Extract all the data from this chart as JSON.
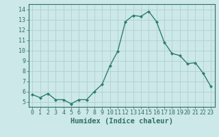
{
  "x": [
    0,
    1,
    2,
    3,
    4,
    5,
    6,
    7,
    8,
    9,
    10,
    11,
    12,
    13,
    14,
    15,
    16,
    17,
    18,
    19,
    20,
    21,
    22,
    23
  ],
  "y": [
    5.7,
    5.4,
    5.8,
    5.2,
    5.2,
    4.8,
    5.2,
    5.2,
    6.0,
    6.7,
    8.5,
    9.9,
    12.8,
    13.4,
    13.3,
    13.8,
    12.8,
    10.8,
    9.7,
    9.5,
    8.7,
    8.8,
    7.8,
    6.5
  ],
  "line_color": "#2e7d6e",
  "marker": "D",
  "marker_size": 2.0,
  "bg_color": "#cce8e8",
  "grid_color": "#b0d0d0",
  "xlabel": "Humidex (Indice chaleur)",
  "xlim": [
    -0.5,
    23.5
  ],
  "ylim": [
    4.5,
    14.5
  ],
  "yticks": [
    5,
    6,
    7,
    8,
    9,
    10,
    11,
    12,
    13,
    14
  ],
  "xticks": [
    0,
    1,
    2,
    3,
    4,
    5,
    6,
    7,
    8,
    9,
    10,
    11,
    12,
    13,
    14,
    15,
    16,
    17,
    18,
    19,
    20,
    21,
    22,
    23
  ],
  "tick_color": "#2e6e64",
  "xlabel_fontsize": 7.5,
  "tick_fontsize": 6.0,
  "linewidth": 1.0
}
